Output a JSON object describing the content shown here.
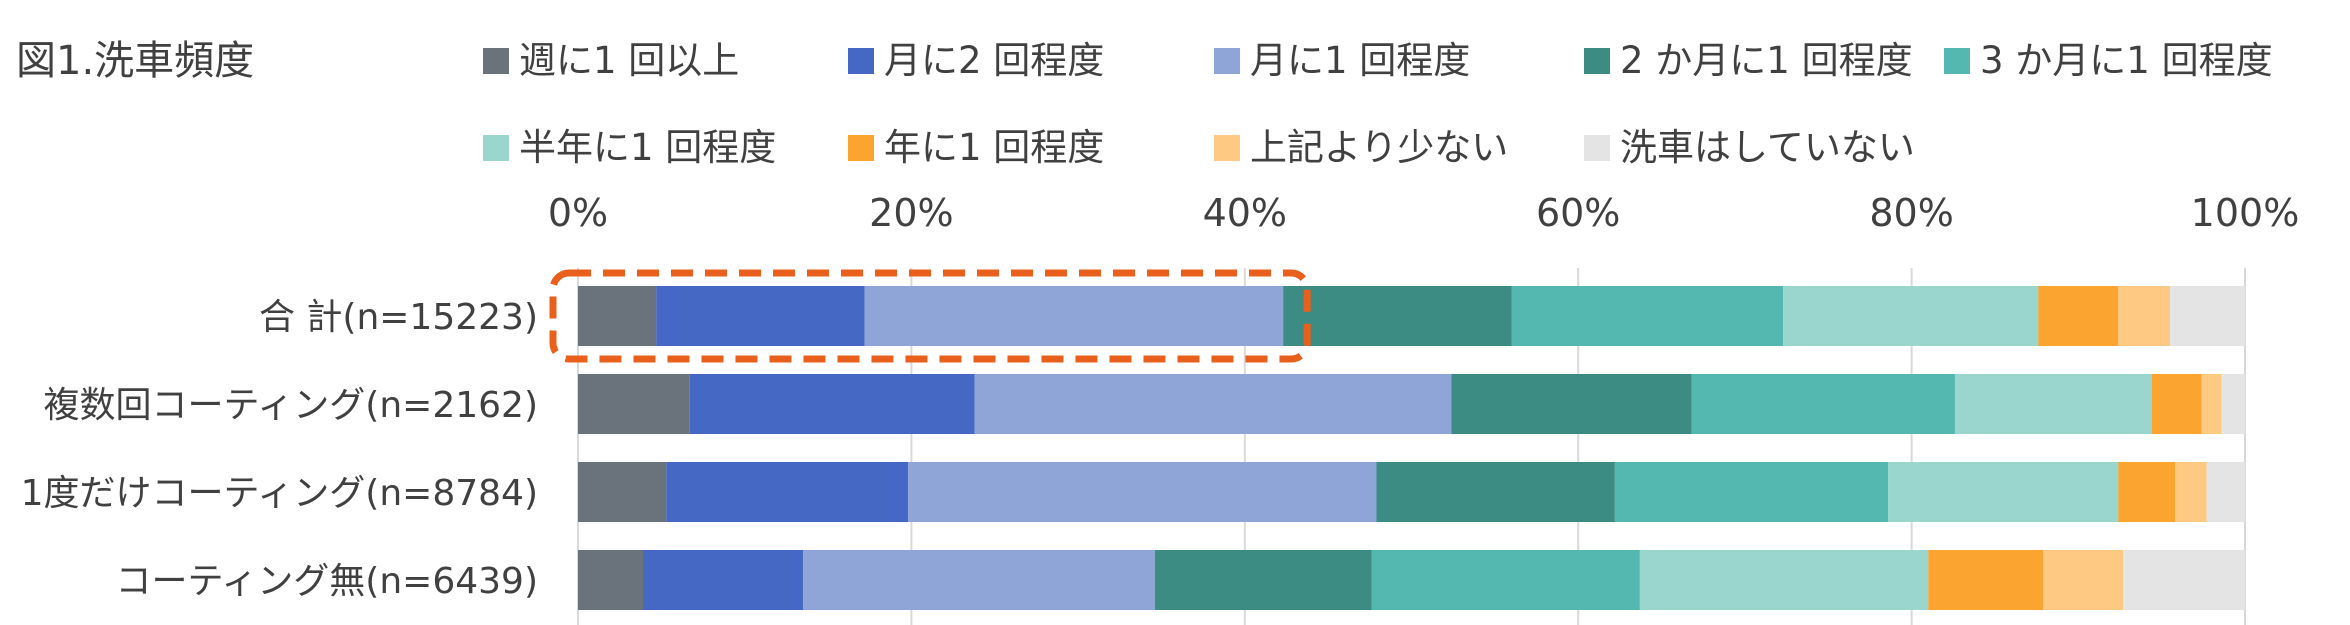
{
  "chart_data": {
    "type": "bar",
    "orientation": "horizontal",
    "stacked": true,
    "title": "図1.洗車頻度",
    "xlim": [
      0,
      100
    ],
    "x_ticks": [
      "0%",
      "20%",
      "40%",
      "60%",
      "80%",
      "100%"
    ],
    "grid": true,
    "legend_position": "top",
    "categories": [
      "合 計(n=15223)",
      "複数回コーティング(n=2162)",
      "1度だけコーティング(n=8784)",
      "コーティング無(n=6439)"
    ],
    "series": [
      {
        "name": "週に1 回以上",
        "color": "#6a737b",
        "values": [
          4.7,
          6.7,
          5.3,
          3.9
        ]
      },
      {
        "name": "月に2 回程度",
        "color": "#4468c4",
        "values": [
          12.5,
          17.1,
          14.5,
          9.6
        ]
      },
      {
        "name": "月に1 回程度",
        "color": "#8fa5d8",
        "values": [
          25.1,
          28.6,
          28.1,
          21.1
        ]
      },
      {
        "name": "2 か月に1 回程度",
        "color": "#3d8c84",
        "values": [
          13.7,
          14.4,
          14.3,
          13.0
        ]
      },
      {
        "name": "3 か月に1 回程度",
        "color": "#55b8b0",
        "values": [
          16.3,
          15.8,
          16.4,
          16.1
        ]
      },
      {
        "name": "半年に1 回程度",
        "color": "#9ad6ce",
        "values": [
          15.3,
          11.8,
          13.8,
          17.3
        ]
      },
      {
        "name": "年に1 回程度",
        "color": "#fba530",
        "values": [
          4.8,
          3.0,
          3.4,
          6.9
        ]
      },
      {
        "name": "上記より少ない",
        "color": "#fdc983",
        "values": [
          3.1,
          1.2,
          1.9,
          4.8
        ]
      },
      {
        "name": "洗車はしていない",
        "color": "#e4e4e4",
        "values": [
          4.5,
          1.4,
          2.3,
          7.3
        ]
      }
    ],
    "highlight": {
      "category_index": 0,
      "series_range": [
        0,
        2
      ],
      "color": "#e8601c",
      "style": "dashed"
    }
  }
}
